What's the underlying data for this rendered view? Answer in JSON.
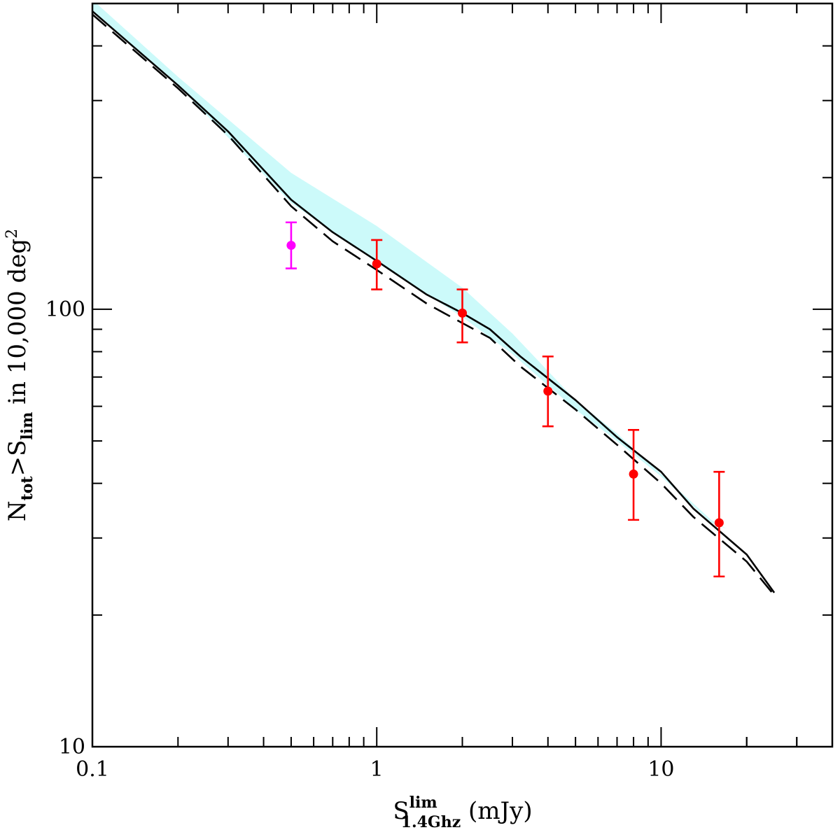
{
  "chart_data": {
    "type": "line",
    "title": "",
    "x_scale": "log",
    "y_scale": "log",
    "xlim": [
      0.1,
      40
    ],
    "ylim": [
      10,
      500
    ],
    "grid": false,
    "legend": "none",
    "xlabel": {
      "main": "S",
      "sup": "lim",
      "sub": "1.4Ghz",
      "unit": " (mJy)"
    },
    "ylabel": {
      "n_main": "N",
      "n_sub": "tot",
      "gt": ">",
      "s_main": "S",
      "s_sub": "lim",
      "rest": " in 10,000 deg",
      "rest_sup": "2"
    },
    "x_ticks": [
      {
        "value": 0.1,
        "label": "0.1"
      },
      {
        "value": 1,
        "label": "1"
      },
      {
        "value": 10,
        "label": "10"
      }
    ],
    "y_ticks": [
      {
        "value": 10,
        "label": "10"
      },
      {
        "value": 100,
        "label": "100"
      }
    ],
    "band": {
      "color": "#ccfafa",
      "upper": [
        [
          0.1,
          510
        ],
        [
          0.2,
          340
        ],
        [
          0.5,
          205
        ],
        [
          1,
          155
        ],
        [
          2,
          112
        ],
        [
          3,
          88
        ],
        [
          5,
          62
        ],
        [
          7,
          52
        ],
        [
          10,
          42
        ],
        [
          15,
          33
        ],
        [
          17,
          31.5
        ]
      ],
      "lower": [
        [
          0.1,
          480
        ],
        [
          0.2,
          325
        ],
        [
          0.5,
          175
        ],
        [
          1,
          128
        ],
        [
          2,
          96
        ],
        [
          3,
          79
        ],
        [
          5,
          59
        ],
        [
          7,
          50
        ],
        [
          10,
          41.5
        ],
        [
          15,
          32.5
        ],
        [
          17,
          31.5
        ]
      ]
    },
    "series": [
      {
        "style": "solid",
        "color": "#000000",
        "points": [
          [
            0.1,
            480
          ],
          [
            0.2,
            325
          ],
          [
            0.3,
            255
          ],
          [
            0.5,
            178
          ],
          [
            0.7,
            150
          ],
          [
            1,
            129
          ],
          [
            1.5,
            108
          ],
          [
            2,
            98
          ],
          [
            2.5,
            90
          ],
          [
            3.2,
            78
          ],
          [
            5,
            62
          ],
          [
            7,
            51
          ],
          [
            10,
            42.5
          ],
          [
            13,
            35
          ],
          [
            20,
            27.5
          ],
          [
            25,
            22.5
          ]
        ]
      },
      {
        "style": "dashed",
        "color": "#000000",
        "points": [
          [
            0.1,
            472
          ],
          [
            0.2,
            320
          ],
          [
            0.3,
            250
          ],
          [
            0.5,
            172
          ],
          [
            0.7,
            143
          ],
          [
            1,
            123
          ],
          [
            1.5,
            103
          ],
          [
            2,
            93
          ],
          [
            2.5,
            86
          ],
          [
            3.2,
            74
          ],
          [
            5,
            59
          ],
          [
            7,
            49
          ],
          [
            10,
            40
          ],
          [
            13,
            33.5
          ],
          [
            20,
            26.5
          ],
          [
            25,
            22.2
          ]
        ]
      }
    ],
    "points": [
      {
        "x": 0.5,
        "y": 140,
        "yerr_low": 124,
        "yerr_high": 158,
        "color": "#ff00ff"
      },
      {
        "x": 1,
        "y": 127,
        "yerr_low": 111,
        "yerr_high": 144,
        "color": "#ff0000"
      },
      {
        "x": 2,
        "y": 98,
        "yerr_low": 84,
        "yerr_high": 111,
        "color": "#ff0000"
      },
      {
        "x": 4,
        "y": 65,
        "yerr_low": 54,
        "yerr_high": 78,
        "color": "#ff0000"
      },
      {
        "x": 8,
        "y": 42,
        "yerr_low": 33,
        "yerr_high": 53,
        "color": "#ff0000"
      },
      {
        "x": 16,
        "y": 32.5,
        "yerr_low": 24.5,
        "yerr_high": 42.5,
        "color": "#ff0000"
      }
    ]
  }
}
